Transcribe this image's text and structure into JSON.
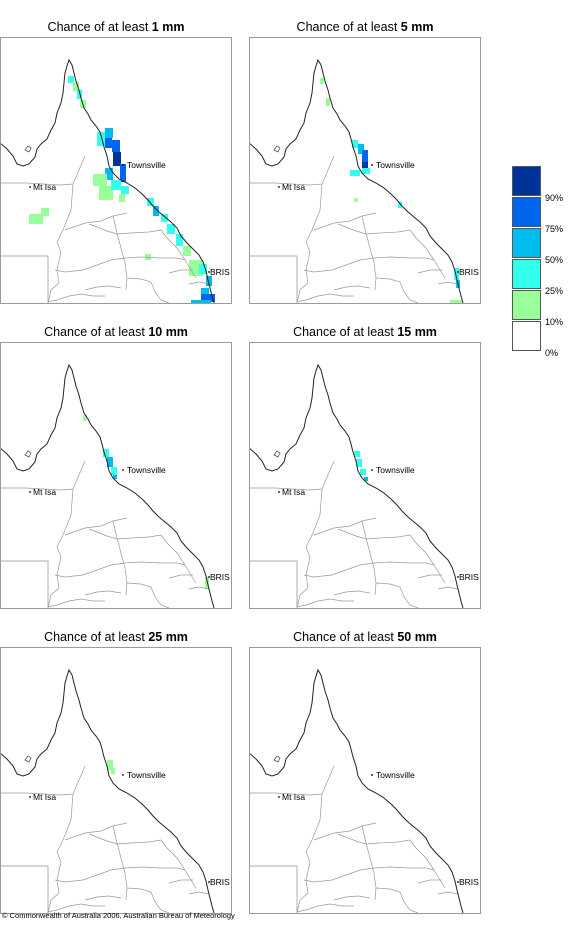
{
  "panels": [
    {
      "title_prefix": "Chance of at least ",
      "amount": "1 mm"
    },
    {
      "title_prefix": "Chance of at least ",
      "amount": "5 mm"
    },
    {
      "title_prefix": "Chance of at least ",
      "amount": "10 mm"
    },
    {
      "title_prefix": "Chance of at least ",
      "amount": "15 mm"
    },
    {
      "title_prefix": "Chance of at least ",
      "amount": "25 mm"
    },
    {
      "title_prefix": "Chance of at least ",
      "amount": "50 mm"
    }
  ],
  "places": {
    "townsville": "Townsville",
    "mt_isa": "Mt Isa",
    "brisbane": "BRIS"
  },
  "legend": {
    "labels": [
      "90%",
      "75%",
      "50%",
      "25%",
      "10%",
      "0%"
    ],
    "colors": [
      "#003399",
      "#0066ee",
      "#00bbee",
      "#33ffee",
      "#99ff99",
      "#ffffff"
    ]
  },
  "copyright": "© Commonwealth of Australia 2006, Australian Bureau of Meteorology"
}
